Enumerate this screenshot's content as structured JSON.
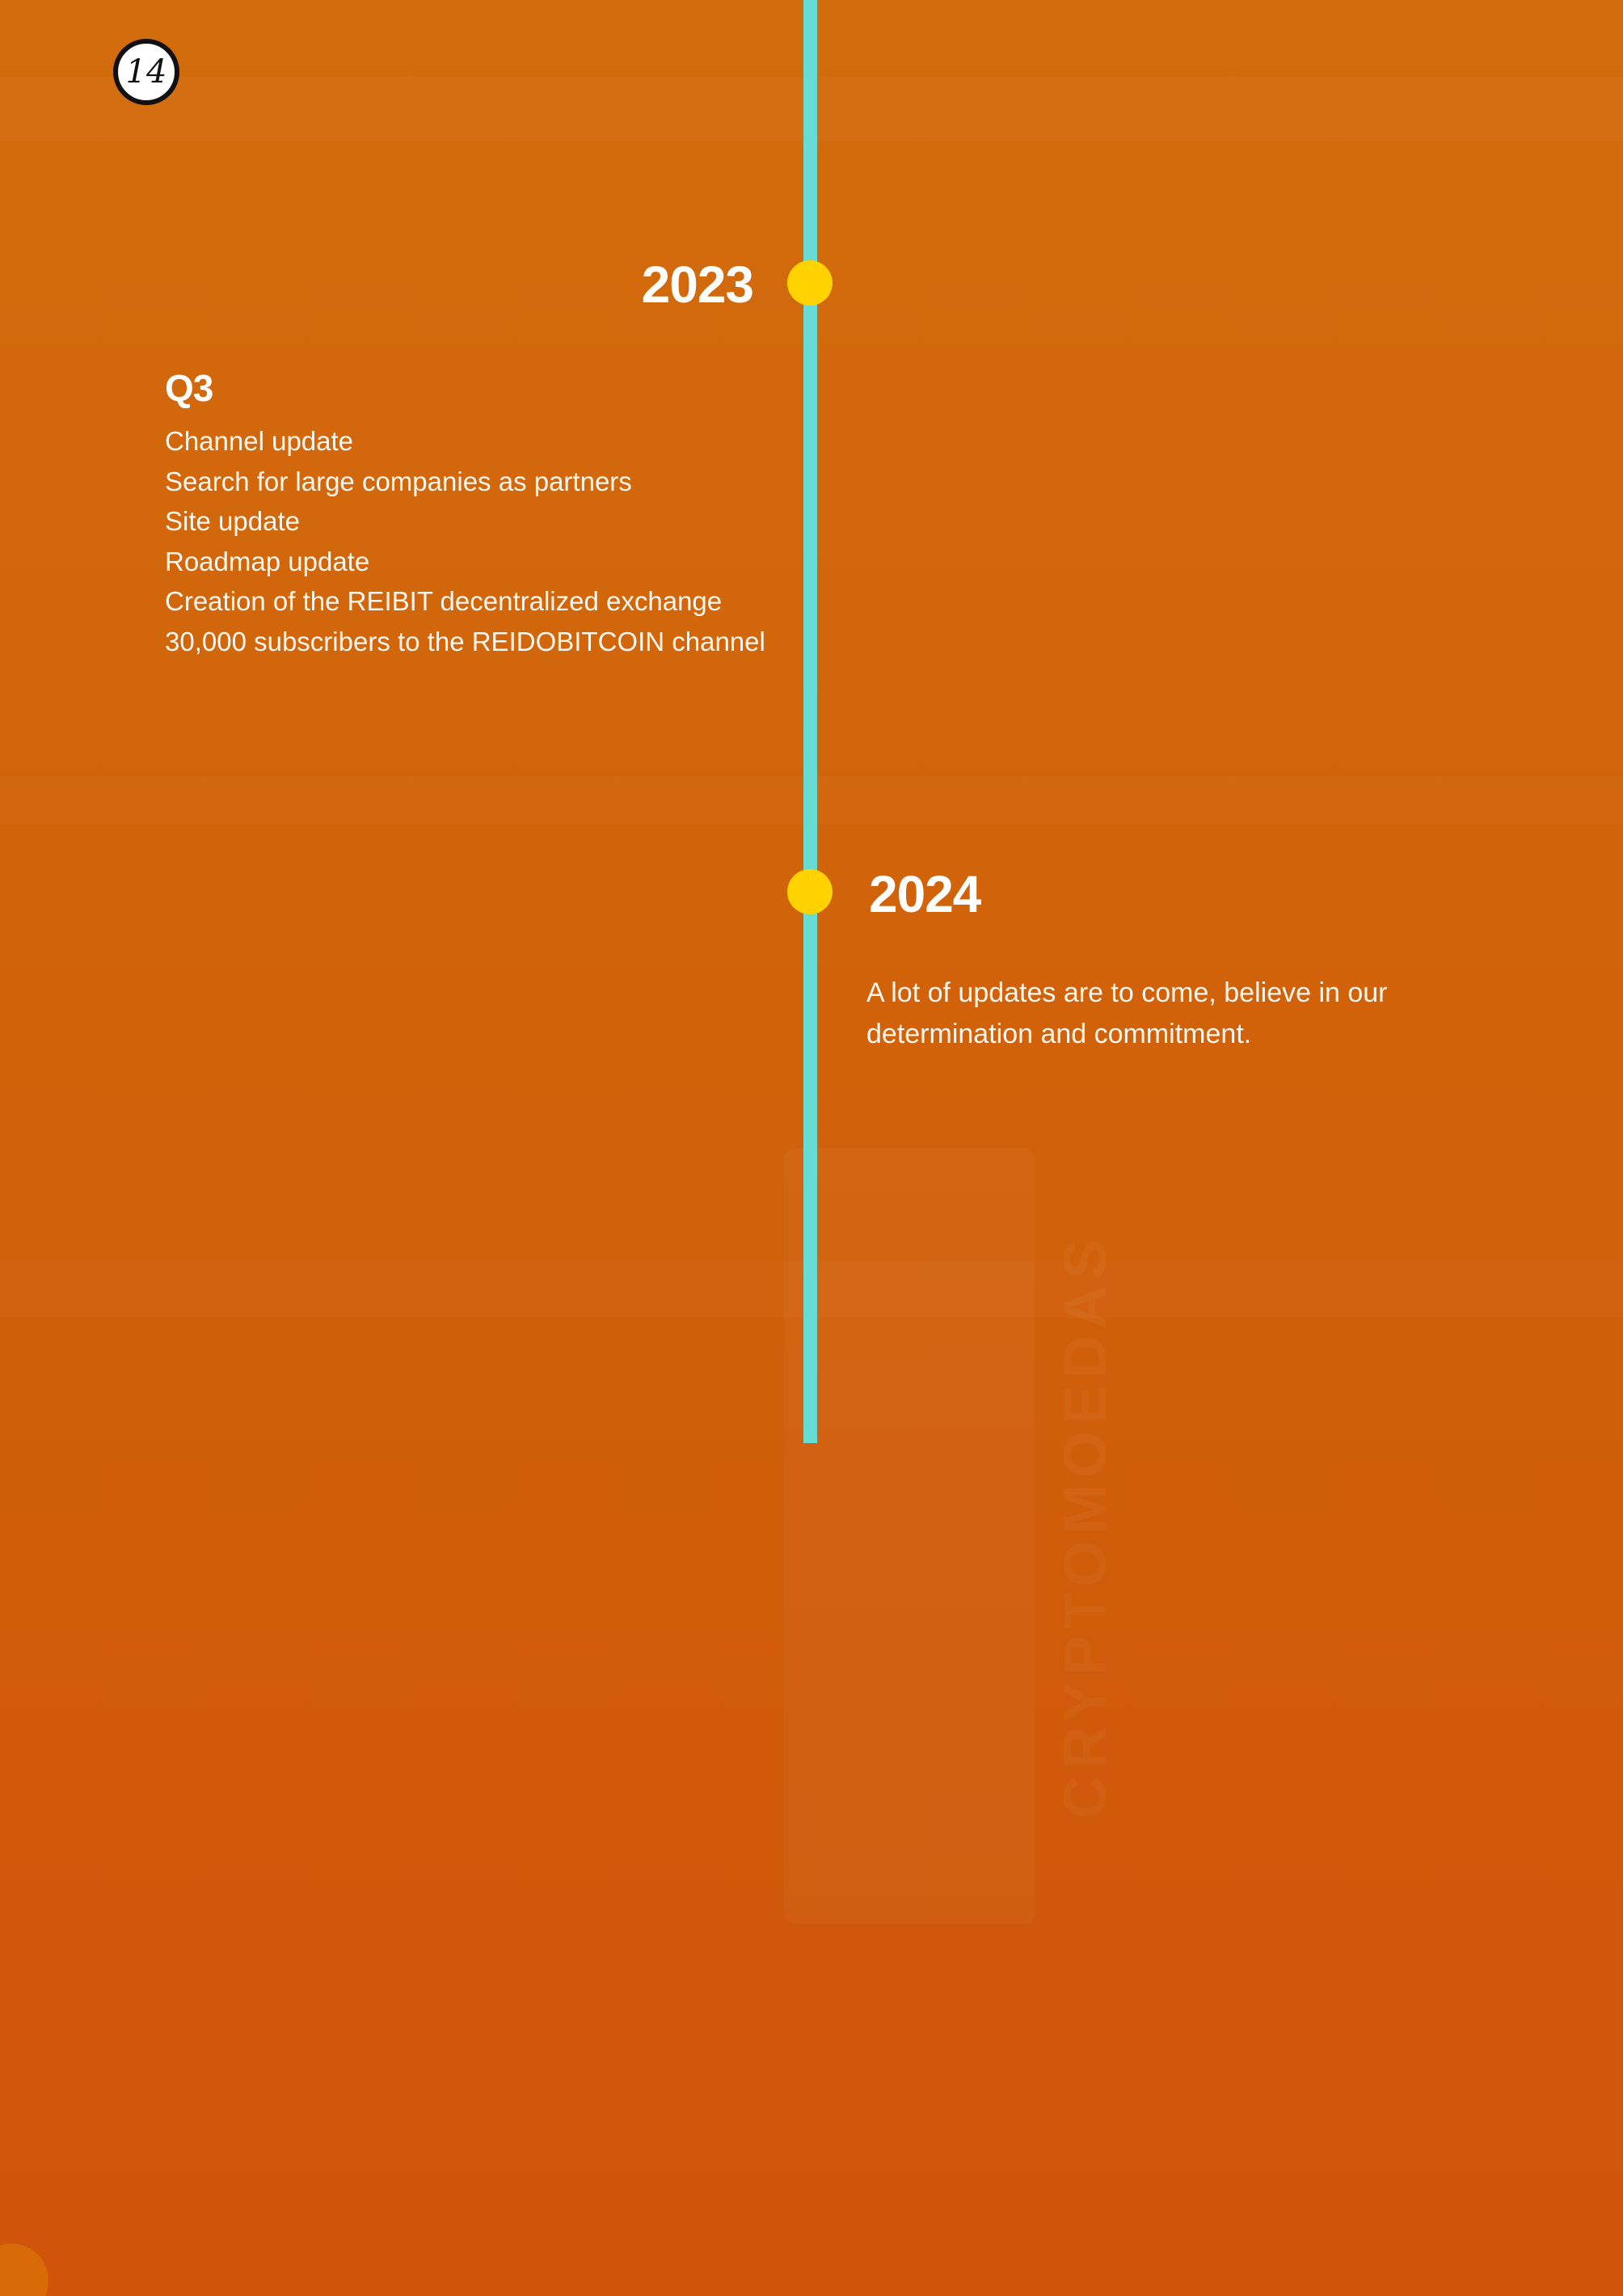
{
  "page": {
    "number": "14",
    "watermark_text": "CRYPTOMOEDAS"
  },
  "timeline": {
    "line_color": "#66dcd4",
    "dot_color": "#ffd200",
    "background_color": "#d26c0c"
  },
  "sections": [
    {
      "year": "2023",
      "quarter": "Q3",
      "items": [
        "Channel update",
        "Search for large companies as partners",
        "Site update",
        "Roadmap update",
        "Creation of the REIBIT decentralized exchange",
        "30,000 subscribers to the REIDOBITCOIN channel"
      ]
    },
    {
      "year": "2024",
      "description": "A lot of updates are to come, believe in our determination and commitment."
    }
  ]
}
